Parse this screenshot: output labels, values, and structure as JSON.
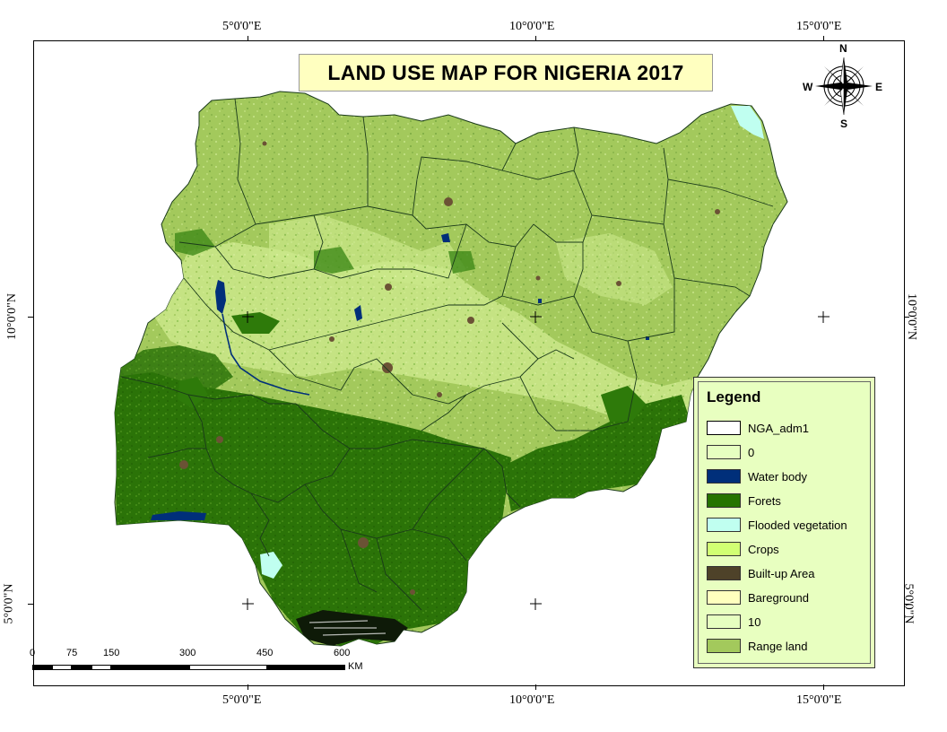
{
  "title": "LAND USE MAP FOR NIGERIA 2017",
  "compass": {
    "n": "N",
    "s": "S",
    "e": "E",
    "w": "W",
    "icon": "compass-rose-icon"
  },
  "coordinates": {
    "top": [
      "5°0'0\"E",
      "10°0'0\"E",
      "15°0'0\"E"
    ],
    "bottom": [
      "5°0'0\"E",
      "10°0'0\"E",
      "15°0'0\"E"
    ],
    "left": [
      "10°0'0\"N",
      "5°0'0\"N"
    ],
    "right": [
      "10°0'0\"N",
      "5°0'0\"N"
    ]
  },
  "legend": {
    "title": "Legend",
    "items": [
      {
        "label": "NGA_adm1",
        "color": "#ffffff",
        "outline": "#000000"
      },
      {
        "label": "0",
        "color": "#e6ffc0"
      },
      {
        "label": "Water body",
        "color": "#002f7a"
      },
      {
        "label": "Forets",
        "color": "#267300"
      },
      {
        "label": "Flooded vegetation",
        "color": "#c0fff0"
      },
      {
        "label": "Crops",
        "color": "#d1ff73"
      },
      {
        "label": "Built-up Area",
        "color": "#4e4229"
      },
      {
        "label": "Bareground",
        "color": "#ffffbe"
      },
      {
        "label": "10",
        "color": "#e6ffc0"
      },
      {
        "label": "Range land",
        "color": "#a3c95c"
      }
    ]
  },
  "scale": {
    "ticks": [
      "0",
      "75",
      "150",
      "300",
      "450",
      "600"
    ],
    "unit": "KM"
  },
  "colors": {
    "rangeland": "#a3c95c",
    "crops": "#d1f08a",
    "forest": "#2e7a0a",
    "water": "#002f7a",
    "builtup": "#6b5235",
    "boundary": "#1a3a1a"
  }
}
